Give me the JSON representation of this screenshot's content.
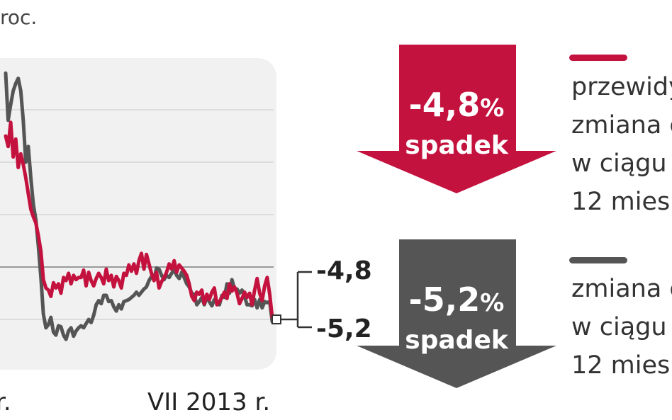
{
  "unit_label": "roc.",
  "chart_data": {
    "type": "line",
    "x_tick_labels": [
      "r.",
      "VII 2013 r."
    ],
    "ylim": [
      -9,
      19
    ],
    "gridlines_y": [
      -5,
      0,
      5,
      10,
      15
    ],
    "grid": true,
    "series": [
      {
        "color": "#c4123f",
        "values": [
          12.5,
          11.5,
          13.8,
          10.5,
          12.2,
          9.5,
          10.8,
          9.8,
          8.5,
          7.0,
          5.5,
          4.8,
          4.2,
          3.0,
          1.5,
          -1.2,
          -2.0,
          -2.2,
          -2.8,
          -1.5,
          -2.0,
          -1.6,
          -2.5,
          -1.0,
          -1.3,
          -0.6,
          -1.6,
          -0.8,
          -1.2,
          -1.0,
          -1.0,
          -0.3,
          -1.8,
          -0.5,
          -1.3,
          -1.8,
          -1.1,
          -0.6,
          -1.0,
          -1.6,
          -0.2,
          -1.3,
          -0.8,
          -1.9,
          -0.9,
          -1.3,
          -2.0,
          -0.6,
          -0.8,
          0.2,
          -0.4,
          0.3,
          -0.6,
          0.6,
          1.3,
          -0.2,
          1.2,
          0.3,
          -0.6,
          -1.3,
          -0.5,
          -2.0,
          -1.4,
          -1.0,
          -0.5,
          0.3,
          -0.2,
          0.6,
          -0.5,
          0.2,
          -0.1,
          -0.4,
          -0.8,
          -1.6,
          -2.8,
          -3.2,
          -2.4,
          -2.6,
          -2.2,
          -3.5,
          -2.6,
          -3.1,
          -2.4,
          -2.0,
          -3.6,
          -3.3,
          -2.9,
          -2.4,
          -3.0,
          -1.6,
          -2.3,
          -1.9,
          -2.5,
          -3.5,
          -3.0,
          -2.4,
          -2.9,
          -2.5,
          -3.6,
          -2.2,
          -1.1,
          -2.5,
          -3.2,
          -1.8,
          -1.0,
          -2.6,
          -4.8
        ]
      },
      {
        "color": "#555555",
        "values": [
          18.5,
          14.0,
          15.5,
          16.8,
          17.5,
          18.0,
          16.8,
          14.0,
          10.0,
          11.5,
          8.5,
          6.0,
          4.5,
          2.0,
          -1.0,
          -4.5,
          -5.8,
          -5.5,
          -4.8,
          -6.2,
          -6.5,
          -5.6,
          -5.7,
          -6.5,
          -6.9,
          -6.1,
          -5.8,
          -6.6,
          -6.1,
          -5.8,
          -5.6,
          -5.8,
          -5.4,
          -5.0,
          -5.3,
          -4.6,
          -3.6,
          -3.2,
          -3.5,
          -2.7,
          -2.7,
          -3.3,
          -3.2,
          -3.8,
          -4.2,
          -3.6,
          -4.0,
          -3.3,
          -3.2,
          -3.1,
          -2.9,
          -2.7,
          -2.4,
          -2.7,
          -2.4,
          -2.1,
          -1.9,
          -1.3,
          -0.9,
          -1.2,
          -0.1,
          -0.2,
          -0.8,
          -1.2,
          -0.8,
          -1.0,
          -0.6,
          -0.3,
          -0.8,
          -1.1,
          -0.5,
          -1.0,
          -1.6,
          -1.9,
          -2.5,
          -2.6,
          -3.6,
          -3.3,
          -2.9,
          -3.6,
          -2.9,
          -3.3,
          -3.7,
          -3.1,
          -3.3,
          -3.6,
          -2.7,
          -2.9,
          -1.6,
          -2.5,
          -1.2,
          -2.1,
          -2.1,
          -2.5,
          -2.2,
          -2.8,
          -3.6,
          -3.6,
          -3.7,
          -3.1,
          -3.9,
          -3.1,
          -3.9,
          -3.3,
          -3.4,
          -3.3,
          -5.2
        ]
      }
    ],
    "end_labels": [
      "-4,8",
      "-5,2"
    ]
  },
  "callouts": [
    {
      "value": "-4,8",
      "percent": "%",
      "label": "spadek",
      "color": "#c4123f",
      "legend_lines": [
        "przewidy",
        "zmiana c",
        "w ciągu",
        "12 mies"
      ]
    },
    {
      "value": "-5,2",
      "percent": "%",
      "label": "spadek",
      "color": "#555555",
      "legend_lines": [
        "zmiana c",
        "w ciągu",
        "12 mies"
      ]
    }
  ]
}
